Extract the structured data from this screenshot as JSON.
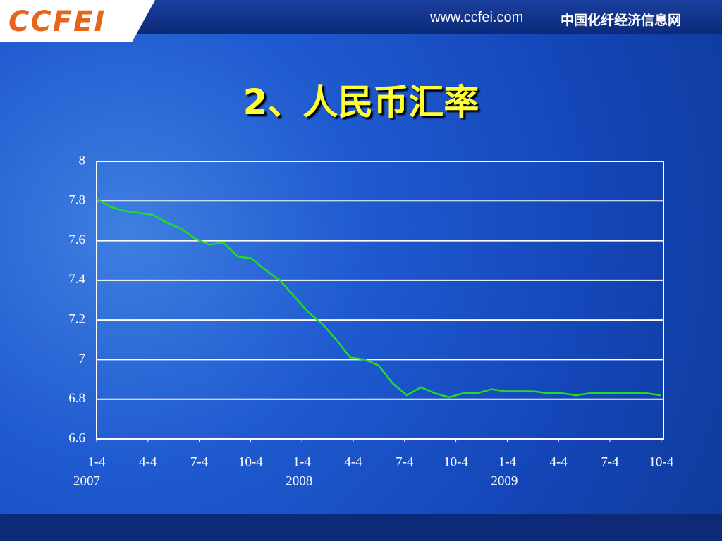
{
  "header": {
    "logo": "CCFEI",
    "url": "www.ccfei.com",
    "site_name": "中国化纤经济信息网"
  },
  "chart_data": {
    "type": "line",
    "title": "2、人民币汇率",
    "xticks": [
      "1-4",
      "4-4",
      "7-4",
      "10-4",
      "1-4",
      "4-4",
      "7-4",
      "10-4",
      "1-4",
      "4-4",
      "7-4",
      "10-4"
    ],
    "year_labels": [
      "2007",
      "2008",
      "2009"
    ],
    "values": [
      7.81,
      7.77,
      7.75,
      7.74,
      7.73,
      7.69,
      7.66,
      7.61,
      7.58,
      7.59,
      7.52,
      7.51,
      7.45,
      7.4,
      7.32,
      7.24,
      7.18,
      7.1,
      7.01,
      7.0,
      6.97,
      6.88,
      6.82,
      6.86,
      6.83,
      6.81,
      6.83,
      6.83,
      6.85,
      6.84,
      6.84,
      6.84,
      6.83,
      6.83,
      6.82,
      6.83,
      6.83,
      6.83,
      6.83,
      6.83,
      6.82
    ],
    "color": "#22dd22",
    "ylim": [
      6.6,
      8
    ],
    "yticks": [
      6.6,
      6.8,
      7,
      7.2,
      7.4,
      7.6,
      7.8,
      8
    ],
    "grid": true
  }
}
